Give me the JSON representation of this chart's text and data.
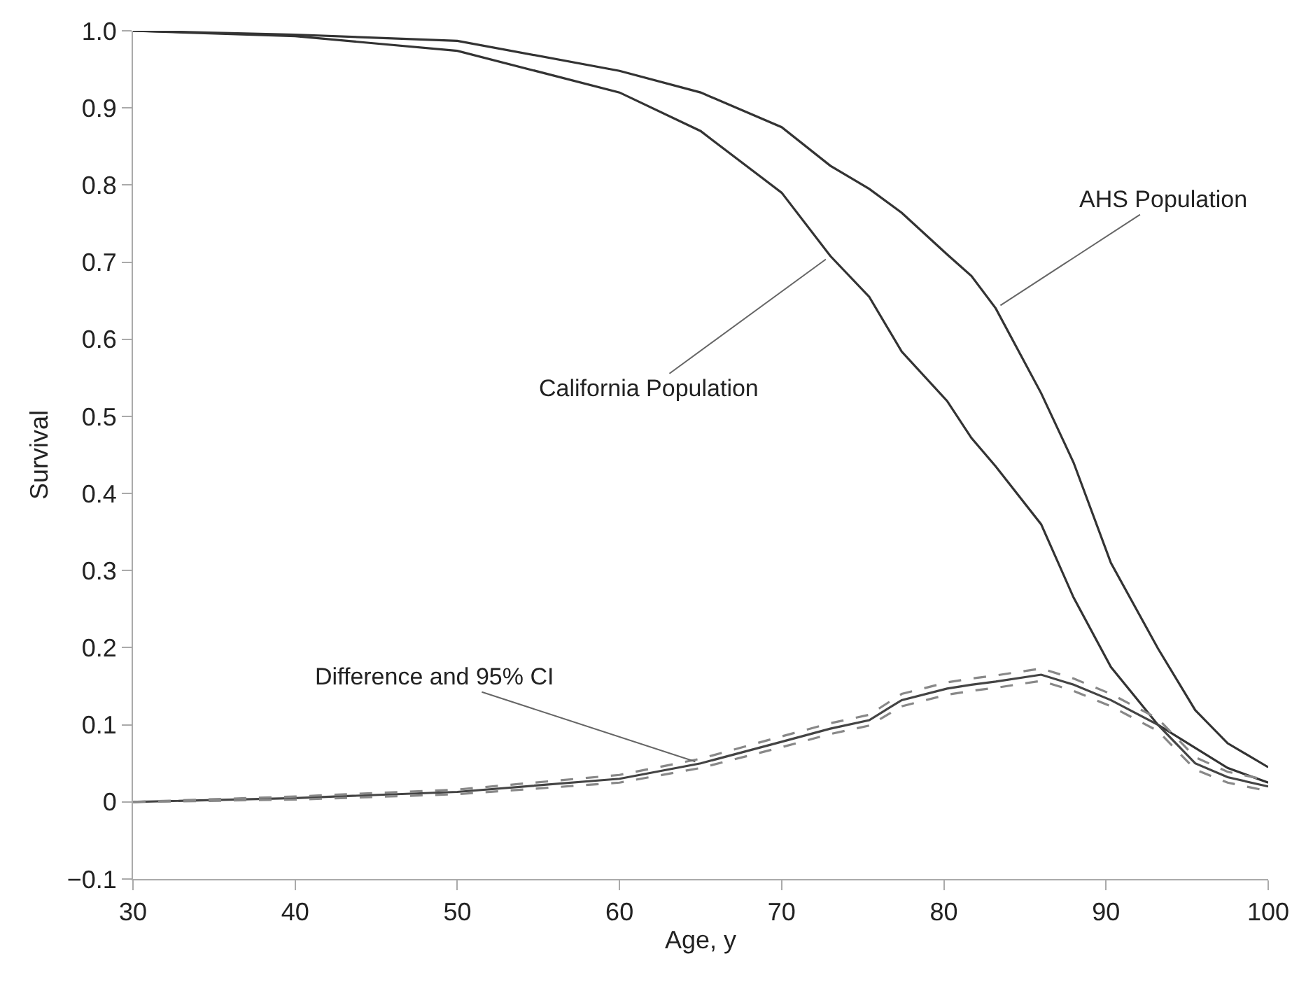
{
  "chart_data": {
    "type": "line",
    "xlabel": "Age, y",
    "ylabel": "Survival",
    "xlim": [
      30,
      100
    ],
    "xticks": [
      30,
      40,
      50,
      60,
      70,
      80,
      90,
      100
    ],
    "ylim": [
      -0.1,
      1.0
    ],
    "yticks": [
      {
        "value": -0.1,
        "label": "−0.1"
      },
      0,
      0.1,
      0.2,
      0.3,
      0.4,
      0.5,
      0.6,
      0.7,
      0.8,
      0.9,
      {
        "value": 1.0,
        "label": "1.0"
      }
    ],
    "marker": "none",
    "x": [
      30,
      40,
      50,
      60,
      65,
      70,
      73,
      75.4,
      77.4,
      80.2,
      81.7,
      83.2,
      86,
      88,
      90.3,
      93.2,
      95.5,
      97.5,
      100
    ],
    "series": [
      {
        "color": "#333333",
        "line_style": "solid",
        "values": [
          1.0,
          0.995,
          0.987,
          0.948,
          0.92,
          0.875,
          0.825,
          0.795,
          0.764,
          0.71,
          0.682,
          0.64,
          0.53,
          0.44,
          0.31,
          0.199,
          0.119,
          0.076,
          0.045
        ]
      },
      {
        "color": "#333333",
        "line_style": "solid",
        "values": [
          1.0,
          0.993,
          0.974,
          0.92,
          0.87,
          0.79,
          0.708,
          0.655,
          0.584,
          0.52,
          0.472,
          0.435,
          0.36,
          0.265,
          0.175,
          0.1,
          0.07,
          0.044,
          0.025
        ]
      },
      {
        "color": "#444444",
        "line_style": "solid",
        "values": [
          0,
          0.005,
          0.013,
          0.03,
          0.05,
          0.078,
          0.095,
          0.106,
          0.132,
          0.147,
          0.152,
          0.156,
          0.165,
          0.152,
          0.132,
          0.1,
          0.05,
          0.032,
          0.02
        ]
      },
      {
        "color": "#888888",
        "line_style": "dashed",
        "values": [
          0,
          0.003,
          0.01,
          0.025,
          0.044,
          0.071,
          0.088,
          0.099,
          0.124,
          0.139,
          0.144,
          0.148,
          0.157,
          0.144,
          0.124,
          0.092,
          0.042,
          0.025,
          0.014
        ]
      },
      {
        "color": "#888888",
        "line_style": "dashed",
        "values": [
          0,
          0.007,
          0.016,
          0.035,
          0.056,
          0.085,
          0.102,
          0.113,
          0.14,
          0.155,
          0.16,
          0.164,
          0.173,
          0.16,
          0.14,
          0.108,
          0.058,
          0.039,
          0.028
        ]
      }
    ],
    "annotations": [
      {
        "text": "AHS Population",
        "x": 83.2,
        "y": 0.64
      },
      {
        "text": "California Population",
        "x": 73,
        "y": 0.708
      },
      {
        "text": "Difference and 95% CI",
        "x": 65,
        "y": 0.05
      }
    ]
  }
}
